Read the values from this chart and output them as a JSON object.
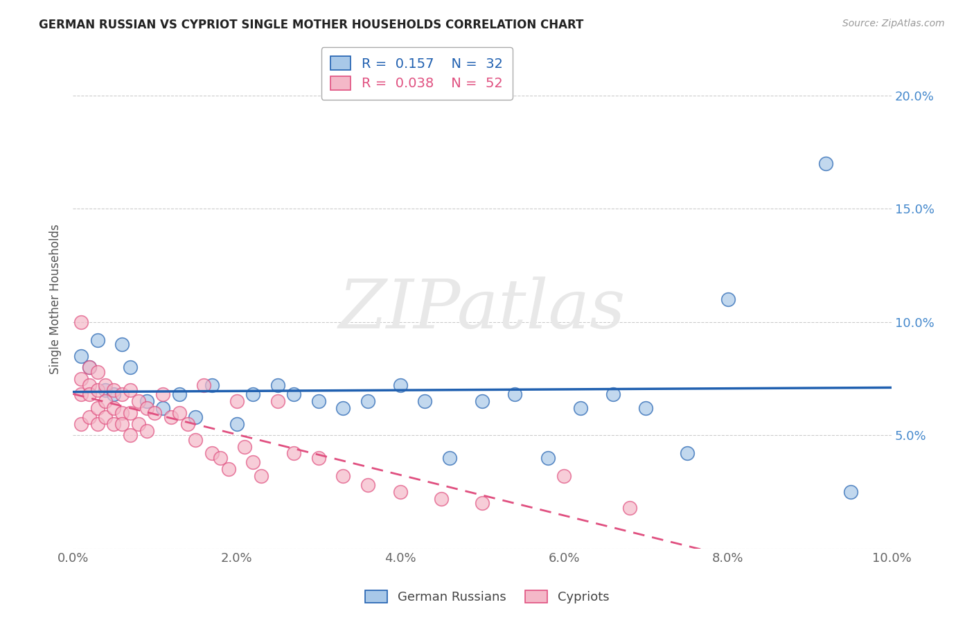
{
  "title": "GERMAN RUSSIAN VS CYPRIOT SINGLE MOTHER HOUSEHOLDS CORRELATION CHART",
  "source": "Source: ZipAtlas.com",
  "ylabel": "Single Mother Households",
  "xlim": [
    0.0,
    0.1
  ],
  "ylim": [
    0.0,
    0.22
  ],
  "xticks": [
    0.0,
    0.02,
    0.04,
    0.06,
    0.08,
    0.1
  ],
  "yticks": [
    0.0,
    0.05,
    0.1,
    0.15,
    0.2
  ],
  "ytick_labels_right": [
    "",
    "5.0%",
    "10.0%",
    "15.0%",
    "20.0%"
  ],
  "xtick_labels": [
    "0.0%",
    "2.0%",
    "4.0%",
    "6.0%",
    "8.0%",
    "10.0%"
  ],
  "blue_scatter_color": "#a8c8e8",
  "pink_scatter_color": "#f4b8c8",
  "blue_line_color": "#2060b0",
  "pink_line_color": "#e05080",
  "legend_blue_r": "0.157",
  "legend_blue_n": "32",
  "legend_pink_r": "0.038",
  "legend_pink_n": "52",
  "legend_label_blue": "German Russians",
  "legend_label_pink": "Cypriots",
  "watermark": "ZIPatlas",
  "tick_color": "#4488cc",
  "german_russian_x": [
    0.001,
    0.002,
    0.003,
    0.004,
    0.005,
    0.006,
    0.007,
    0.009,
    0.011,
    0.013,
    0.015,
    0.017,
    0.02,
    0.022,
    0.025,
    0.027,
    0.03,
    0.033,
    0.036,
    0.04,
    0.043,
    0.046,
    0.05,
    0.054,
    0.058,
    0.062,
    0.066,
    0.07,
    0.075,
    0.08,
    0.092,
    0.095
  ],
  "german_russian_y": [
    0.085,
    0.08,
    0.092,
    0.07,
    0.068,
    0.09,
    0.08,
    0.065,
    0.062,
    0.068,
    0.058,
    0.072,
    0.055,
    0.068,
    0.072,
    0.068,
    0.065,
    0.062,
    0.065,
    0.072,
    0.065,
    0.04,
    0.065,
    0.068,
    0.04,
    0.062,
    0.068,
    0.062,
    0.042,
    0.11,
    0.17,
    0.025
  ],
  "cypriot_x": [
    0.001,
    0.001,
    0.001,
    0.001,
    0.002,
    0.002,
    0.002,
    0.002,
    0.003,
    0.003,
    0.003,
    0.003,
    0.004,
    0.004,
    0.004,
    0.005,
    0.005,
    0.005,
    0.006,
    0.006,
    0.006,
    0.007,
    0.007,
    0.007,
    0.008,
    0.008,
    0.009,
    0.009,
    0.01,
    0.011,
    0.012,
    0.013,
    0.014,
    0.015,
    0.016,
    0.017,
    0.018,
    0.019,
    0.02,
    0.021,
    0.022,
    0.023,
    0.025,
    0.027,
    0.03,
    0.033,
    0.036,
    0.04,
    0.045,
    0.05,
    0.06,
    0.068
  ],
  "cypriot_y": [
    0.1,
    0.075,
    0.068,
    0.055,
    0.08,
    0.072,
    0.068,
    0.058,
    0.078,
    0.07,
    0.062,
    0.055,
    0.072,
    0.065,
    0.058,
    0.07,
    0.062,
    0.055,
    0.068,
    0.06,
    0.055,
    0.07,
    0.06,
    0.05,
    0.065,
    0.055,
    0.062,
    0.052,
    0.06,
    0.068,
    0.058,
    0.06,
    0.055,
    0.048,
    0.072,
    0.042,
    0.04,
    0.035,
    0.065,
    0.045,
    0.038,
    0.032,
    0.065,
    0.042,
    0.04,
    0.032,
    0.028,
    0.025,
    0.022,
    0.02,
    0.032,
    0.018
  ]
}
